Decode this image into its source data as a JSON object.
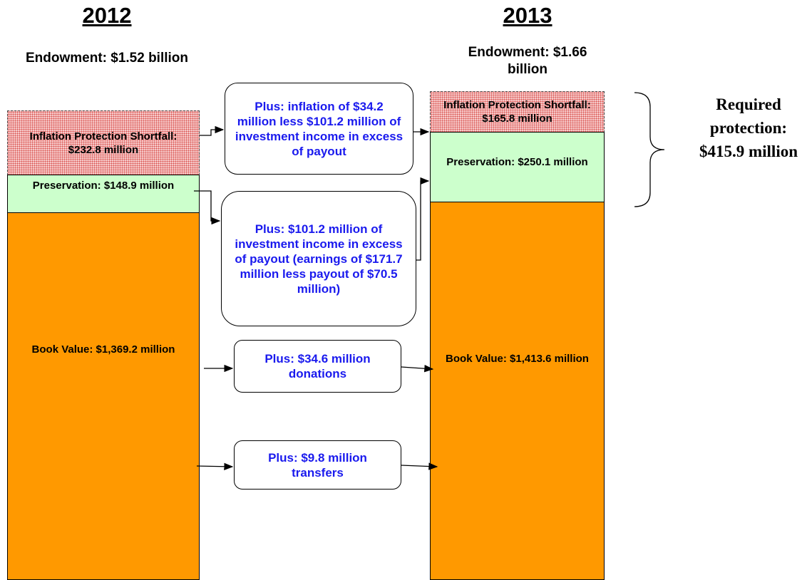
{
  "columns": [
    {
      "year": "2012",
      "endowment": "Endowment: $1.52 billion",
      "inflation_protection": "Inflation Protection Shortfall: $232.8 million",
      "preservation": "Preservation:  $148.9 million",
      "book_value": "Book Value: $1,369.2 million"
    },
    {
      "year": "2013",
      "endowment": "Endowment: $1.66 billion",
      "inflation_protection": "Inflation Protection Shortfall: $165.8 million",
      "preservation": "Preservation: $250.1 million",
      "book_value": "Book Value: $1,413.6 million"
    }
  ],
  "flows": [
    "Plus: inflation of $34.2 million less $101.2 million of investment income in excess of payout",
    "Plus: $101.2 million of investment income in excess of payout (earnings of $171.7 million less payout of $70.5 million)",
    "Plus: $34.6 million donations",
    "Plus: $9.8 million transfers"
  ],
  "required_protection": "Required protection: $415.9 million"
}
